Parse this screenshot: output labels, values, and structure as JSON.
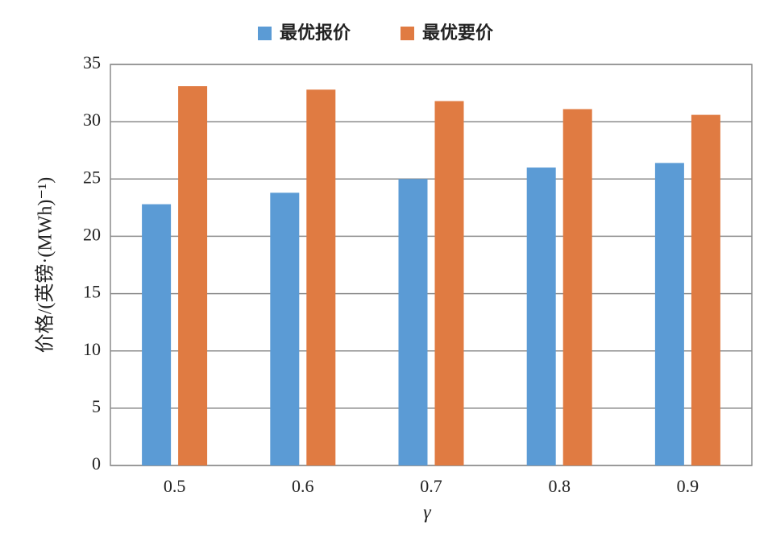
{
  "chart_data": {
    "type": "bar",
    "x_label": "γ",
    "y_label": "价格/(英镑·(MWh)⁻¹)",
    "categories": [
      "0.5",
      "0.6",
      "0.7",
      "0.8",
      "0.9"
    ],
    "series": [
      {
        "name": "最优报价",
        "color": "#5b9bd5",
        "values": [
          22.8,
          23.8,
          25.0,
          26.0,
          26.4
        ]
      },
      {
        "name": "最优要价",
        "color": "#e07b42",
        "values": [
          33.1,
          32.8,
          31.8,
          31.1,
          30.6
        ]
      }
    ],
    "ylim": [
      0,
      35
    ],
    "yticks": [
      0,
      5,
      10,
      15,
      20,
      25,
      30,
      35
    ],
    "grid": true
  }
}
